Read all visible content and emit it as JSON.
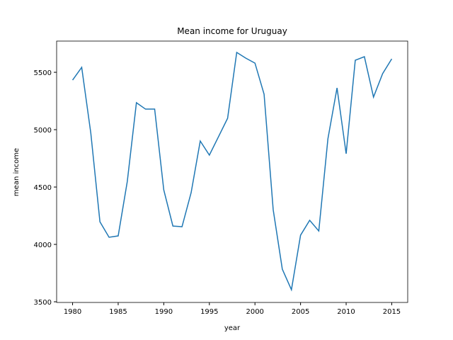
{
  "chart_data": {
    "type": "line",
    "title": "Mean income for Uruguay",
    "x_label": "year",
    "y_label": "mean income",
    "x": [
      1980,
      1981,
      1982,
      1983,
      1984,
      1985,
      1986,
      1987,
      1988,
      1989,
      1990,
      1991,
      1992,
      1993,
      1994,
      1995,
      1996,
      1997,
      1998,
      1999,
      2000,
      2001,
      2002,
      2003,
      2004,
      2005,
      2006,
      2007,
      2008,
      2009,
      2010,
      2011,
      2012,
      2013,
      2014,
      2015
    ],
    "series": [
      {
        "name": "Uruguay",
        "color": "#1f77b4",
        "values": [
          5432,
          5543,
          4969,
          4197,
          4062,
          4074,
          4549,
          5235,
          5179,
          5179,
          4475,
          4160,
          4154,
          4451,
          4901,
          4778,
          4938,
          5099,
          5673,
          5623,
          5580,
          5309,
          4302,
          3784,
          3605,
          4080,
          4210,
          4117,
          4920,
          5364,
          4790,
          5605,
          5636,
          5284,
          5488,
          5617
        ]
      }
    ],
    "xlim": [
      1978.25,
      2016.75
    ],
    "xticks": [
      1980,
      1985,
      1990,
      1995,
      2000,
      2005,
      2010,
      2015
    ],
    "ylim": [
      3494,
      5772
    ],
    "yticks": [
      3500,
      4000,
      4500,
      5000,
      5500
    ]
  }
}
